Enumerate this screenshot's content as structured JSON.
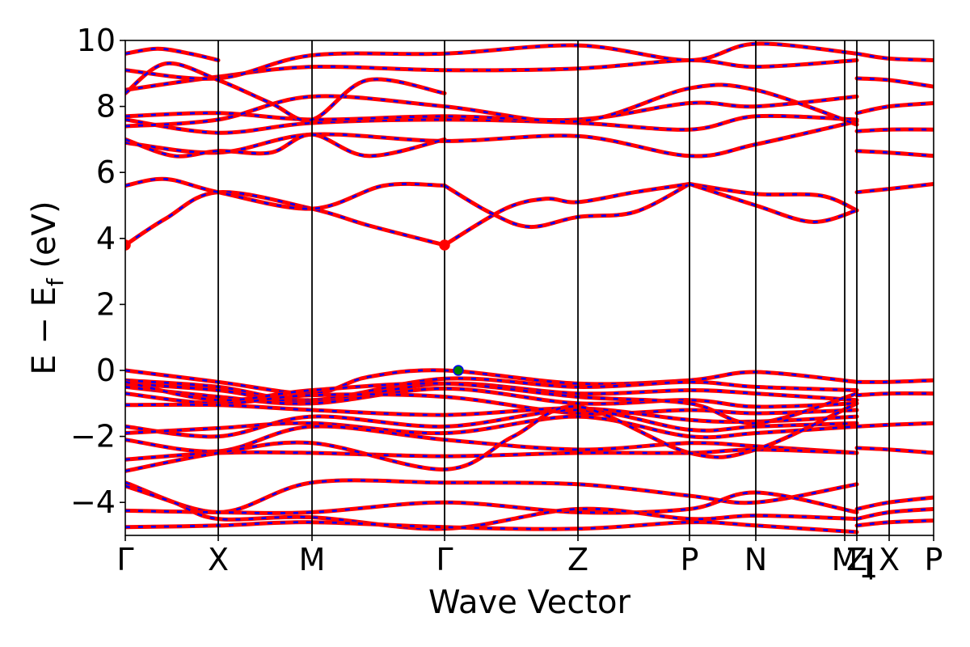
{
  "chart_data": {
    "type": "line",
    "title": "",
    "xlabel": "Wave Vector",
    "ylabel": "E − E",
    "ylabel_sub": "f",
    "ylabel_unit": " (eV)",
    "ylim": [
      -5,
      10
    ],
    "xlim": [
      0,
      1
    ],
    "yticks": [
      10,
      8,
      6,
      4,
      2,
      0,
      -2,
      -4
    ],
    "ytick_labels": [
      "10",
      "8",
      "6",
      "4",
      "2",
      "0",
      "−2",
      "−4"
    ],
    "grid": false,
    "legend": "none",
    "kpath": [
      {
        "label": "Γ",
        "x": 0.0
      },
      {
        "label": "X",
        "x": 0.115
      },
      {
        "label": "M",
        "x": 0.231
      },
      {
        "label": "Γ",
        "x": 0.395
      },
      {
        "label": "Z",
        "x": 0.56
      },
      {
        "label": "P",
        "x": 0.698
      },
      {
        "label": "N",
        "x": 0.78
      },
      {
        "label": "M",
        "x": 0.89
      },
      {
        "label": "Z",
        "x": 0.905
      },
      {
        "label": "X",
        "x": 0.945
      },
      {
        "label": "P",
        "x": 1.0
      }
    ],
    "kpath_extra": [
      {
        "label": "1",
        "x": 0.905,
        "style": "subscript"
      },
      {
        "label": "|",
        "x": 0.912,
        "style": "plain"
      }
    ],
    "band_colors": {
      "spin_up": "#ff0000",
      "spin_down": "#0000ff"
    },
    "markers": [
      {
        "name": "CBM",
        "x": 0.0,
        "y": 3.8,
        "color": "#ff0000"
      },
      {
        "name": "CBM",
        "x": 0.395,
        "y": 3.8,
        "color": "#ff0000"
      },
      {
        "name": "VBM",
        "x": 0.412,
        "y": 0.0,
        "color": "#008000"
      }
    ],
    "series": [
      {
        "x": [
          0,
          0.05,
          0.115,
          0.231,
          0.3,
          0.395
        ],
        "y": [
          3.8,
          4.6,
          5.4,
          4.9,
          4.4,
          3.8
        ]
      },
      {
        "x": [
          0,
          0.05,
          0.115,
          0.231,
          0.32,
          0.395
        ],
        "y": [
          5.6,
          5.8,
          5.4,
          4.9,
          5.6,
          5.6
        ]
      },
      {
        "x": [
          0.395,
          0.47,
          0.52,
          0.56,
          0.63,
          0.698
        ],
        "y": [
          3.8,
          4.9,
          5.2,
          5.1,
          5.4,
          5.65
        ]
      },
      {
        "x": [
          0.395,
          0.45,
          0.5,
          0.56,
          0.63,
          0.698
        ],
        "y": [
          5.6,
          4.8,
          4.35,
          4.65,
          4.8,
          5.65
        ]
      },
      {
        "x": [
          0.698,
          0.78,
          0.86,
          0.905
        ],
        "y": [
          5.65,
          5.35,
          5.3,
          4.85
        ]
      },
      {
        "x": [
          0.698,
          0.78,
          0.85,
          0.905
        ],
        "y": [
          5.65,
          5.0,
          4.5,
          4.85
        ]
      },
      {
        "x": [
          0.905,
          0.945,
          1.0
        ],
        "y": [
          5.4,
          5.5,
          5.65
        ]
      },
      {
        "x": [
          0,
          0.115,
          0.231,
          0.395,
          0.56,
          0.698,
          0.78,
          0.905
        ],
        "y": [
          6.9,
          6.6,
          7.15,
          6.95,
          7.1,
          6.5,
          6.85,
          7.55
        ]
      },
      {
        "x": [
          0,
          0.06,
          0.115,
          0.18,
          0.231,
          0.3,
          0.395
        ],
        "y": [
          7.0,
          6.5,
          6.65,
          6.6,
          7.15,
          6.5,
          7.0
        ]
      },
      {
        "x": [
          0,
          0.115,
          0.231,
          0.395,
          0.56,
          0.698,
          0.78,
          0.905
        ],
        "y": [
          7.6,
          7.2,
          7.5,
          7.6,
          7.5,
          7.3,
          7.7,
          7.6
        ]
      },
      {
        "x": [
          0,
          0.115,
          0.231,
          0.395,
          0.56,
          0.698,
          0.78,
          0.905
        ],
        "y": [
          7.7,
          7.8,
          7.6,
          7.7,
          7.6,
          8.1,
          8.0,
          8.3
        ]
      },
      {
        "x": [
          0,
          0.115,
          0.231,
          0.395,
          0.56,
          0.698,
          0.78,
          0.905
        ],
        "y": [
          7.4,
          7.6,
          8.3,
          8.0,
          7.55,
          8.55,
          8.5,
          7.45
        ]
      },
      {
        "x": [
          0,
          0.115,
          0.231,
          0.395,
          0.56,
          0.698,
          0.78,
          0.905
        ],
        "y": [
          8.5,
          8.9,
          9.2,
          9.1,
          9.15,
          9.4,
          9.2,
          9.4
        ]
      },
      {
        "x": [
          0,
          0.115,
          0.231,
          0.395,
          0.56,
          0.698,
          0.78,
          0.905
        ],
        "y": [
          9.1,
          8.85,
          9.55,
          9.6,
          9.85,
          9.4,
          9.9,
          9.6
        ]
      },
      {
        "x": [
          0,
          0.05,
          0.115,
          0.18,
          0.231,
          0.3,
          0.395
        ],
        "y": [
          8.4,
          9.3,
          8.8,
          8.1,
          7.6,
          8.8,
          8.4
        ]
      },
      {
        "x": [
          0,
          0.04,
          0.08,
          0.115
        ],
        "y": [
          9.6,
          9.75,
          9.6,
          9.4
        ]
      },
      {
        "x": [
          0.905,
          0.945,
          1.0
        ],
        "y": [
          6.65,
          6.6,
          6.5
        ]
      },
      {
        "x": [
          0.905,
          0.945,
          1.0
        ],
        "y": [
          7.25,
          7.3,
          7.3
        ]
      },
      {
        "x": [
          0.905,
          0.945,
          1.0
        ],
        "y": [
          7.8,
          8.0,
          8.1
        ]
      },
      {
        "x": [
          0.905,
          0.945,
          1.0
        ],
        "y": [
          8.85,
          8.8,
          8.6
        ]
      },
      {
        "x": [
          0.905,
          0.945,
          1.0
        ],
        "y": [
          9.6,
          9.45,
          9.4
        ]
      },
      {
        "x": [
          0,
          0.115,
          0.231,
          0.3,
          0.395,
          0.56,
          0.698,
          0.78,
          0.905
        ],
        "y": [
          0.0,
          -0.35,
          -0.7,
          -0.2,
          0.0,
          -0.4,
          -0.3,
          -0.05,
          -0.35
        ]
      },
      {
        "x": [
          0,
          0.115,
          0.231,
          0.395,
          0.56,
          0.698,
          0.78,
          0.905
        ],
        "y": [
          -0.3,
          -0.5,
          -0.9,
          -0.25,
          -0.5,
          -0.35,
          -0.5,
          -0.6
        ]
      },
      {
        "x": [
          0,
          0.115,
          0.231,
          0.395,
          0.56,
          0.698,
          0.78,
          0.905
        ],
        "y": [
          -0.4,
          -0.6,
          -0.95,
          -0.4,
          -0.7,
          -0.6,
          -0.7,
          -0.9
        ]
      },
      {
        "x": [
          0,
          0.115,
          0.231,
          0.395,
          0.56,
          0.698,
          0.78,
          0.905
        ],
        "y": [
          -0.5,
          -0.8,
          -1.0,
          -0.55,
          -1.0,
          -0.9,
          -1.1,
          -1.0
        ]
      },
      {
        "x": [
          0,
          0.115,
          0.231,
          0.395,
          0.56,
          0.698,
          0.78,
          0.905
        ],
        "y": [
          -0.7,
          -1.0,
          -0.75,
          -0.8,
          -1.3,
          -1.2,
          -1.3,
          -1.2
        ]
      },
      {
        "x": [
          0,
          0.115,
          0.231,
          0.395,
          0.56,
          0.698,
          0.78,
          0.905
        ],
        "y": [
          -1.05,
          -1.05,
          -1.2,
          -1.35,
          -1.15,
          -1.5,
          -1.55,
          -1.4
        ]
      },
      {
        "x": [
          0,
          0.115,
          0.231,
          0.395,
          0.56,
          0.698,
          0.78,
          0.905
        ],
        "y": [
          -0.35,
          -0.9,
          -0.6,
          -0.4,
          -0.8,
          -1.0,
          -1.6,
          -0.7
        ]
      },
      {
        "x": [
          0,
          0.115,
          0.231,
          0.395,
          0.56,
          0.698,
          0.78,
          0.905
        ],
        "y": [
          -1.7,
          -2.0,
          -1.4,
          -1.7,
          -1.2,
          -1.8,
          -1.7,
          -1.6
        ]
      },
      {
        "x": [
          0,
          0.115,
          0.231,
          0.395,
          0.56,
          0.698,
          0.78,
          0.905
        ],
        "y": [
          -1.9,
          -1.75,
          -1.6,
          -1.9,
          -1.4,
          -2.0,
          -1.9,
          -1.7
        ]
      },
      {
        "x": [
          0,
          0.115,
          0.231,
          0.395,
          0.56,
          0.698,
          0.78,
          0.905
        ],
        "y": [
          -2.1,
          -2.45,
          -1.7,
          -2.1,
          -2.4,
          -2.2,
          -2.3,
          -2.5
        ]
      },
      {
        "x": [
          0,
          0.115,
          0.231,
          0.395,
          0.56,
          0.698,
          0.78,
          0.905
        ],
        "y": [
          -2.7,
          -2.5,
          -2.5,
          -2.6,
          -2.5,
          -2.5,
          -2.4,
          -2.5
        ]
      },
      {
        "x": [
          0,
          0.115,
          0.231,
          0.395,
          0.48,
          0.56,
          0.698,
          0.78,
          0.905
        ],
        "y": [
          -3.05,
          -2.5,
          -2.2,
          -3.0,
          -2.0,
          -1.1,
          -2.5,
          -2.4,
          -1.0
        ]
      },
      {
        "x": [
          0.905,
          0.945,
          1.0
        ],
        "y": [
          -0.35,
          -0.35,
          -0.3
        ]
      },
      {
        "x": [
          0.905,
          0.945,
          1.0
        ],
        "y": [
          -0.75,
          -0.7,
          -0.7
        ]
      },
      {
        "x": [
          0.905,
          0.945,
          1.0
        ],
        "y": [
          -1.7,
          -1.65,
          -1.6
        ]
      },
      {
        "x": [
          0.905,
          0.945,
          1.0
        ],
        "y": [
          -2.35,
          -2.4,
          -2.5
        ]
      },
      {
        "x": [
          0,
          0.115,
          0.231,
          0.395,
          0.56,
          0.698,
          0.78,
          0.905
        ],
        "y": [
          -3.4,
          -4.3,
          -3.4,
          -3.4,
          -3.45,
          -3.8,
          -4.0,
          -3.45
        ]
      },
      {
        "x": [
          0,
          0.115,
          0.231,
          0.395,
          0.56,
          0.698,
          0.78,
          0.905
        ],
        "y": [
          -4.25,
          -4.3,
          -4.3,
          -4.0,
          -4.3,
          -4.2,
          -3.7,
          -4.3
        ]
      },
      {
        "x": [
          0,
          0.06,
          0.115,
          0.231,
          0.395,
          0.56,
          0.698,
          0.78,
          0.905
        ],
        "y": [
          -3.5,
          -4.0,
          -4.5,
          -4.45,
          -4.8,
          -4.2,
          -4.5,
          -4.4,
          -4.5
        ]
      },
      {
        "x": [
          0,
          0.115,
          0.231,
          0.395,
          0.56,
          0.698,
          0.78,
          0.905
        ],
        "y": [
          -4.75,
          -4.7,
          -4.6,
          -4.75,
          -4.8,
          -4.6,
          -4.7,
          -4.9
        ]
      },
      {
        "x": [
          0.905,
          0.945,
          1.0
        ],
        "y": [
          -4.2,
          -4.0,
          -3.85
        ]
      },
      {
        "x": [
          0.905,
          0.945,
          1.0
        ],
        "y": [
          -4.5,
          -4.3,
          -4.2
        ]
      },
      {
        "x": [
          0.905,
          0.945,
          1.0
        ],
        "y": [
          -4.7,
          -4.6,
          -4.55
        ]
      }
    ]
  }
}
